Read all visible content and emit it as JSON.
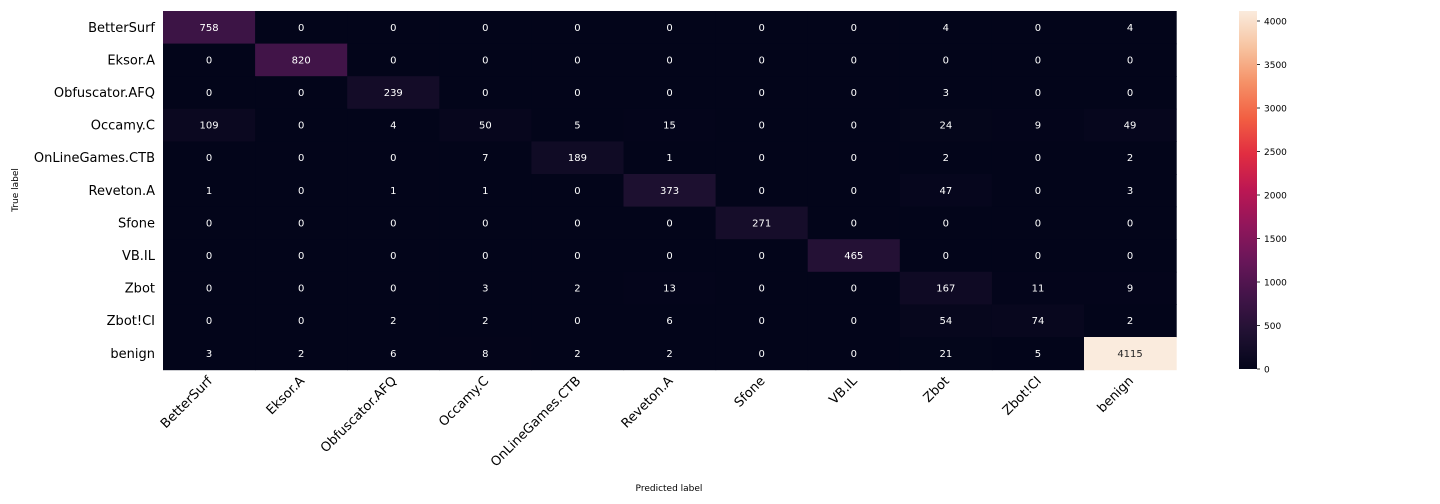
{
  "chart_data": {
    "type": "heatmap",
    "title": "",
    "xlabel": "Predicted label",
    "ylabel": "True label",
    "x_categories": [
      "BetterSurf",
      "Eksor.A",
      "Obfuscator.AFQ",
      "Occamy.C",
      "OnLineGames.CTB",
      "Reveton.A",
      "Sfone",
      "VB.IL",
      "Zbot",
      "Zbot!CI",
      "benign"
    ],
    "y_categories": [
      "BetterSurf",
      "Eksor.A",
      "Obfuscator.AFQ",
      "Occamy.C",
      "OnLineGames.CTB",
      "Reveton.A",
      "Sfone",
      "VB.IL",
      "Zbot",
      "Zbot!CI",
      "benign"
    ],
    "values": [
      [
        758,
        0,
        0,
        0,
        0,
        0,
        0,
        0,
        4,
        0,
        4
      ],
      [
        0,
        820,
        0,
        0,
        0,
        0,
        0,
        0,
        0,
        0,
        0
      ],
      [
        0,
        0,
        239,
        0,
        0,
        0,
        0,
        0,
        3,
        0,
        0
      ],
      [
        109,
        0,
        4,
        50,
        5,
        15,
        0,
        0,
        24,
        9,
        49
      ],
      [
        0,
        0,
        0,
        7,
        189,
        1,
        0,
        0,
        2,
        0,
        2
      ],
      [
        1,
        0,
        1,
        1,
        0,
        373,
        0,
        0,
        47,
        0,
        3
      ],
      [
        0,
        0,
        0,
        0,
        0,
        0,
        271,
        0,
        0,
        0,
        0
      ],
      [
        0,
        0,
        0,
        0,
        0,
        0,
        0,
        465,
        0,
        0,
        0
      ],
      [
        0,
        0,
        0,
        3,
        2,
        13,
        0,
        0,
        167,
        11,
        9
      ],
      [
        0,
        0,
        2,
        2,
        0,
        6,
        0,
        0,
        54,
        74,
        2
      ],
      [
        3,
        2,
        6,
        8,
        2,
        2,
        0,
        0,
        21,
        5,
        4115
      ]
    ],
    "colorbar": {
      "range": [
        0,
        4115
      ],
      "ticks": [
        0,
        500,
        1000,
        1500,
        2000,
        2500,
        3000,
        3500,
        4000
      ],
      "colormap": "rocket"
    }
  }
}
